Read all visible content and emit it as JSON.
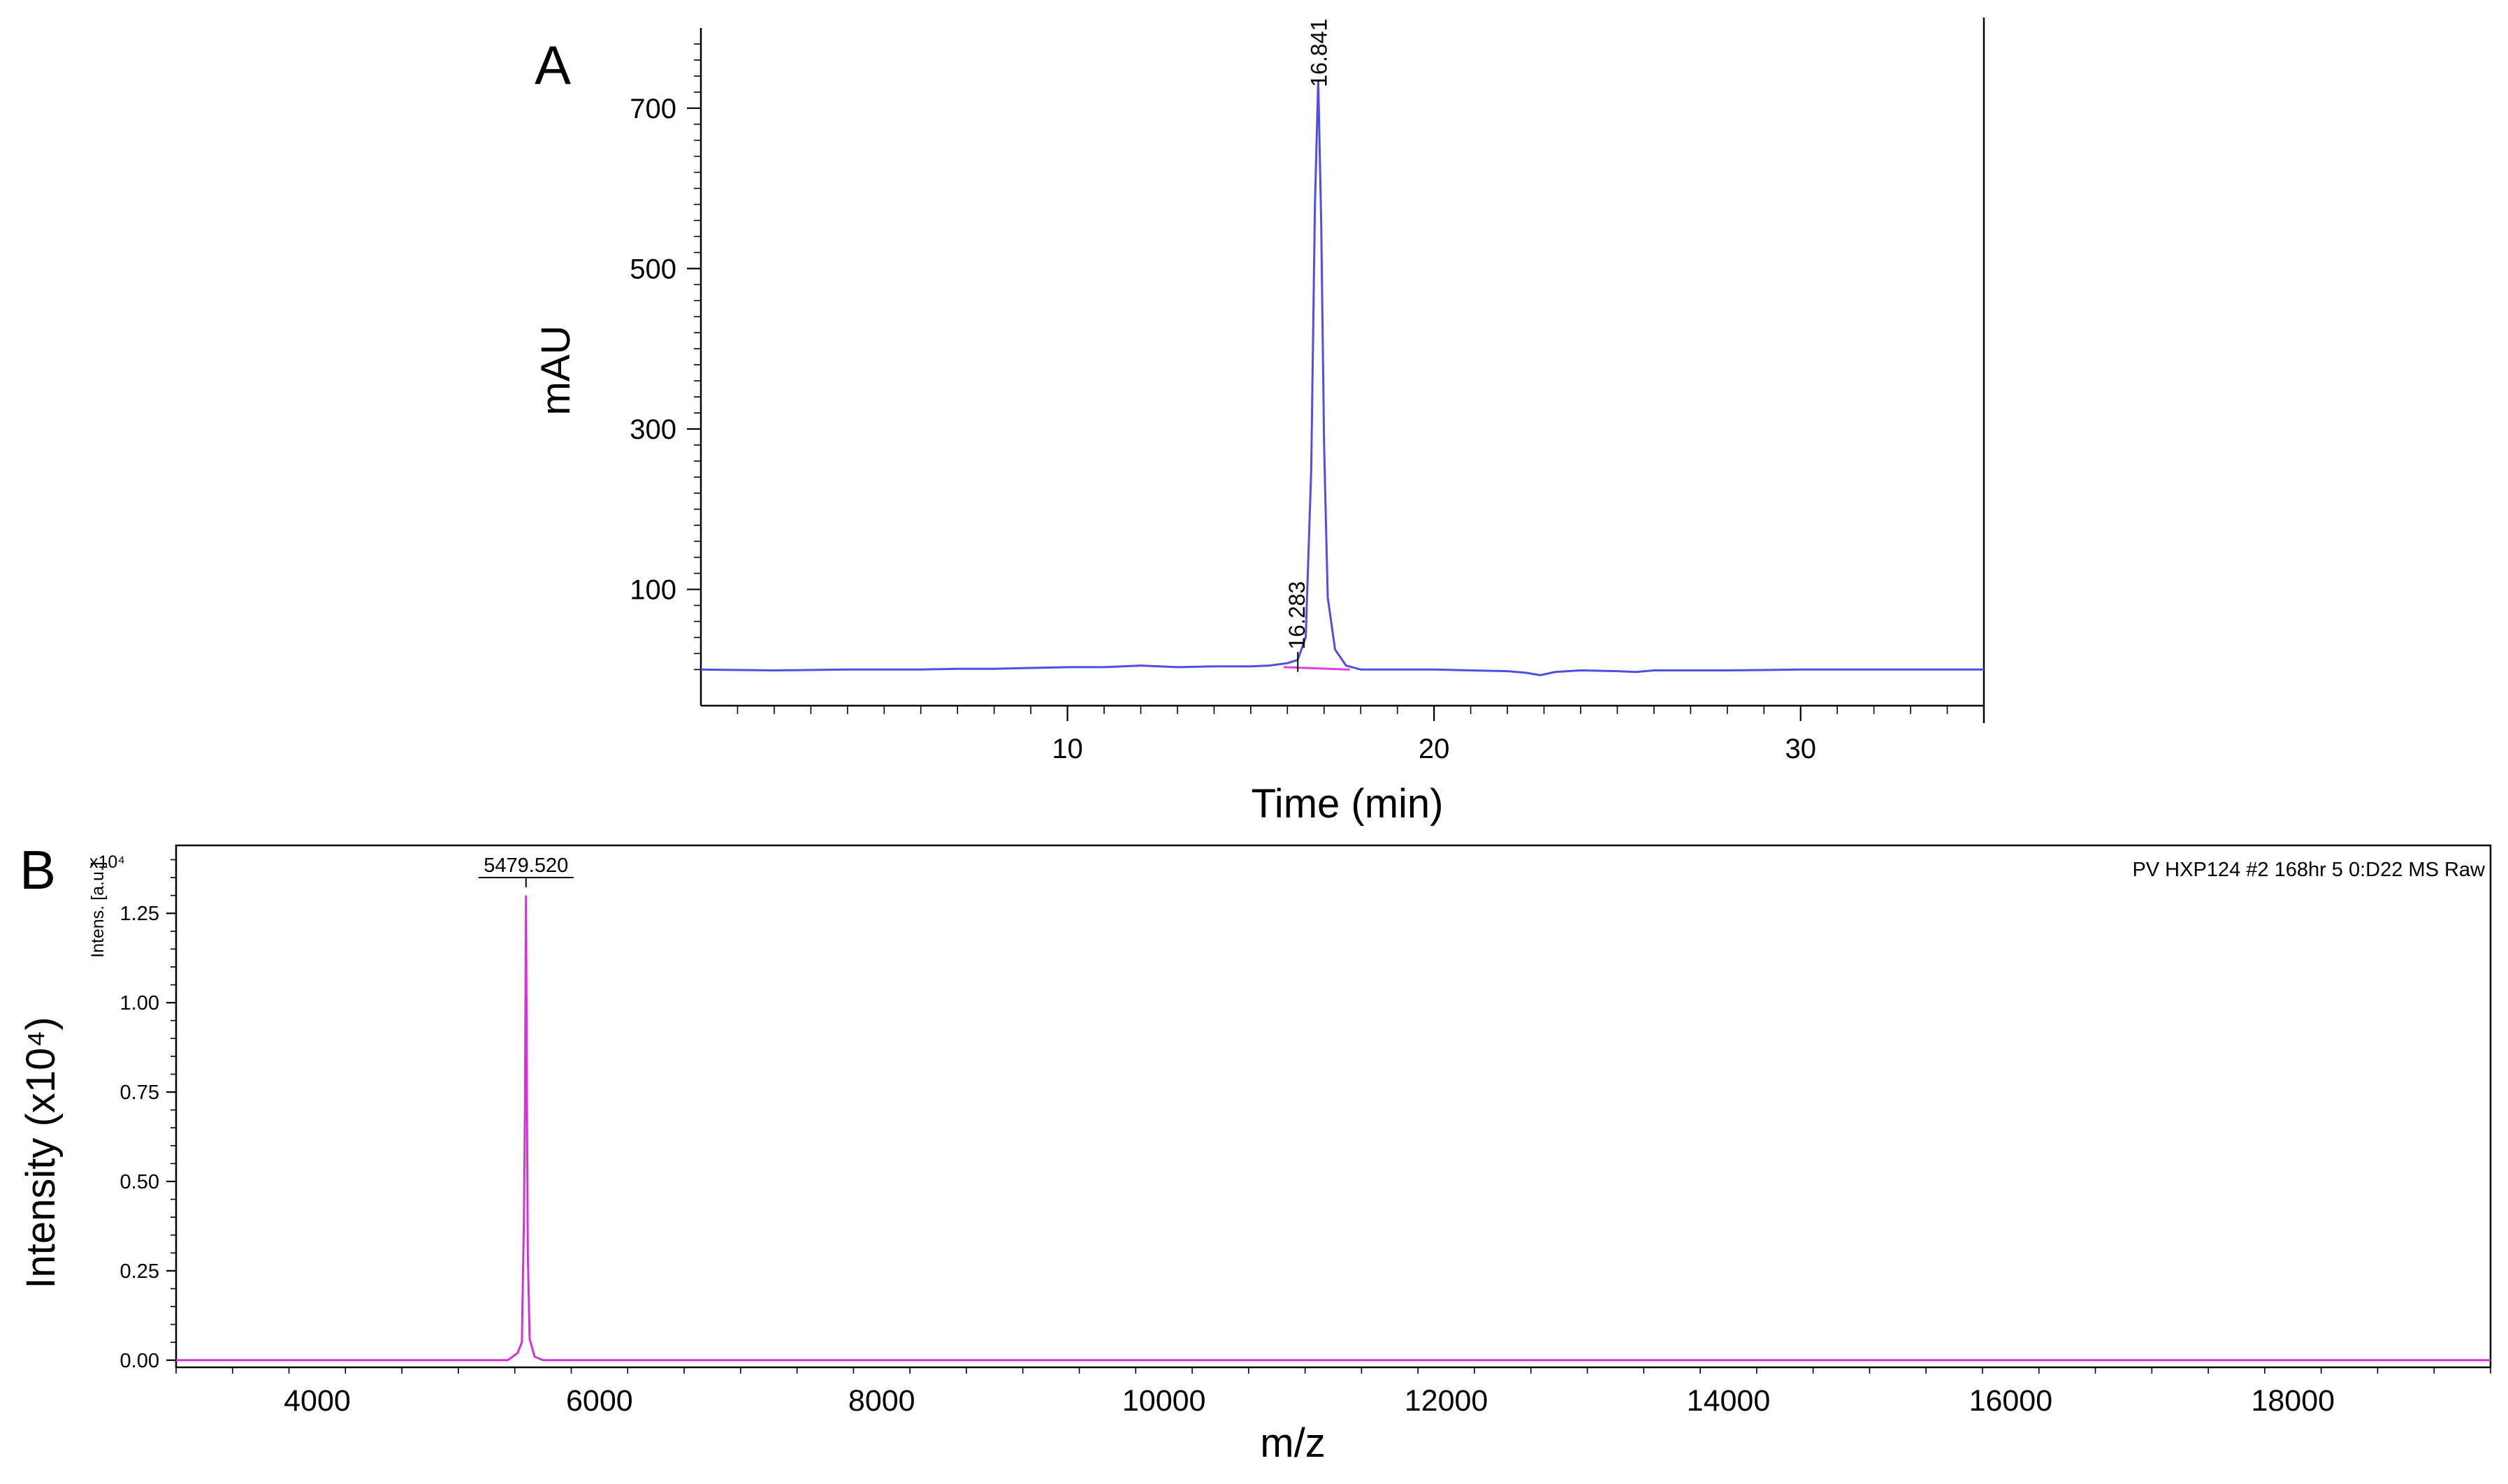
{
  "chart_data": [
    {
      "panel": "A",
      "type": "line",
      "xlabel": "Time (min)",
      "ylabel": "mAU",
      "xlim": [
        0,
        35
      ],
      "ylim": [
        -45,
        800
      ],
      "xticks": [
        10,
        20,
        30
      ],
      "yticks": [
        100,
        300,
        500,
        700
      ],
      "color": "#4f4fe6",
      "baseline_color": "#e040e0",
      "series": [
        {
          "x": [
            0,
            2,
            4,
            6,
            7,
            8,
            9,
            10,
            11,
            12,
            13,
            14,
            15,
            15.5,
            16,
            16.28,
            16.5,
            16.65,
            16.75,
            16.84,
            16.92,
            17.0,
            17.1,
            17.3,
            17.6,
            18,
            19,
            20,
            21,
            22,
            22.5,
            22.9,
            23.3,
            24,
            25,
            25.5,
            26,
            28,
            30,
            32,
            34,
            35
          ],
          "y": [
            0,
            -1,
            0,
            0,
            1,
            1,
            2,
            3,
            3,
            5,
            3,
            4,
            4,
            5,
            8,
            12,
            40,
            250,
            580,
            735,
            560,
            280,
            90,
            25,
            5,
            0,
            0,
            0,
            -1,
            -2,
            -4,
            -7,
            -3,
            -1,
            -2,
            -3,
            -1,
            -1,
            0,
            0,
            0,
            0
          ]
        }
      ],
      "annotations": [
        "16.841",
        "16.283"
      ]
    },
    {
      "panel": "B",
      "type": "line",
      "xlabel": "m/z",
      "ylabel": "Intensity (x10⁴)",
      "ylabel_small": "Intens. [a.u.]",
      "yscale_label": "x10⁴",
      "xlim": [
        3000,
        19400
      ],
      "ylim": [
        -0.02,
        1.44
      ],
      "xticks": [
        4000,
        6000,
        8000,
        10000,
        12000,
        14000,
        16000,
        18000
      ],
      "yticks": [
        0.0,
        0.25,
        0.5,
        0.75,
        1.0,
        1.25
      ],
      "ytick_labels": [
        "0.00",
        "0.25",
        "0.50",
        "0.75",
        "1.00",
        "1.25"
      ],
      "color": "#d633d6",
      "series": [
        {
          "x": [
            3000,
            5350,
            5420,
            5450,
            5465,
            5472,
            5479.52,
            5486,
            5492,
            5505,
            5540,
            5600,
            19400
          ],
          "y": [
            0.0,
            0.0,
            0.02,
            0.05,
            0.4,
            0.7,
            1.3,
            0.7,
            0.3,
            0.06,
            0.01,
            0.0,
            0.0
          ]
        }
      ],
      "annotations": [
        "5479.520"
      ],
      "sample_label": "PV HXP124 #2 168hr 5 0:D22 MS Raw"
    }
  ]
}
